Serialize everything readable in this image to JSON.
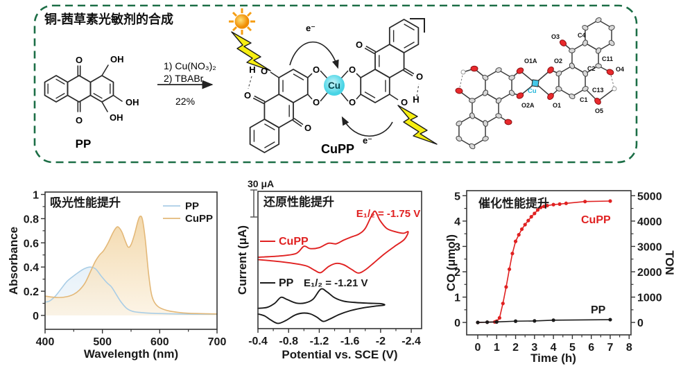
{
  "scheme": {
    "title": "铜-茜草素光敏剂的合成",
    "reactant_label": "PP",
    "product_label": "CuPP",
    "conditions_line1": "1) Cu(NO₃)₂",
    "conditions_line2": "2) TBABr",
    "yield_label": "22%",
    "electron_top": "e⁻",
    "electron_bottom": "e⁻",
    "cu_symbol": "Cu",
    "pp_atoms": {
      "top_o": "O",
      "bottom_o": "O",
      "top_oh": "OH",
      "right_oh": "OH",
      "bottom_oh": "OH"
    },
    "cupp_atoms": {
      "left_h": "H",
      "left_oh_o": "O",
      "left_ketone_left_o": "O",
      "left_ketone_bottom_o": "O",
      "o_top_left": "O",
      "o_bottom_left": "O",
      "o_top_right": "O",
      "o_bottom_right": "O",
      "right_ketone_top_o": "O",
      "right_ketone_right_o": "O",
      "right_oh_o": "O",
      "right_h": "H"
    }
  },
  "crystal": {
    "cu_label": "Cu",
    "atom_labels": {
      "o1a": "O1A",
      "o2": "O2",
      "o3": "O3",
      "c4": "C4",
      "c2": "C2",
      "c11": "C11",
      "o4": "O4",
      "o2a": "O2A",
      "o1": "O1",
      "c1": "C1",
      "c13": "C13",
      "o5": "O5"
    }
  },
  "colors": {
    "accent_red": "#e02121",
    "black_series": "#1a1a1a",
    "pp_blue_line": "#a9cde6",
    "pp_blue_fill": "#bcd8ec",
    "cupp_tan_line": "#e3b878",
    "cupp_tan_fill": "#efcd94",
    "border_green": "#1c6e46",
    "cu_cyan": "#53dbe8",
    "sun_orange": "#f5a21b",
    "bolt_yellow": "#f6ee12",
    "oxygen_red": "#e8292c",
    "carbon_gray": "#d8d8d8"
  },
  "chart_data": [
    {
      "id": "absorption",
      "type": "area",
      "title": "吸光性能提升",
      "xlabel": "Wavelength (nm)",
      "ylabel": "Absorbance",
      "xlim": [
        400,
        700
      ],
      "ylim": [
        -0.115,
        1.02
      ],
      "xticks": [
        400,
        500,
        600,
        700
      ],
      "xminor": [
        450,
        550,
        650
      ],
      "yticks": [
        0,
        0.2,
        0.4,
        0.6,
        0.8,
        1
      ],
      "ytick_labels": [
        "0",
        "0.2",
        "0.4",
        "0.6",
        "0.8",
        "1"
      ],
      "yminor": [
        0.1,
        0.3,
        0.5,
        0.7,
        0.9
      ],
      "legend": [
        {
          "label": "PP",
          "color": "#a9cde6"
        },
        {
          "label": "CuPP",
          "color": "#e3b878"
        }
      ],
      "series": [
        {
          "name": "PP",
          "color": "#a9cde6",
          "fill_top": "#bcd8ec",
          "fill_bottom": "#eef5fb",
          "points": [
            [
              400,
              0.11
            ],
            [
              408,
              0.12
            ],
            [
              418,
              0.16
            ],
            [
              428,
              0.22
            ],
            [
              438,
              0.28
            ],
            [
              448,
              0.32
            ],
            [
              458,
              0.355
            ],
            [
              468,
              0.385
            ],
            [
              478,
              0.4
            ],
            [
              488,
              0.385
            ],
            [
              498,
              0.325
            ],
            [
              508,
              0.27
            ],
            [
              516,
              0.235
            ],
            [
              524,
              0.175
            ],
            [
              532,
              0.115
            ],
            [
              542,
              0.06
            ],
            [
              552,
              0.035
            ],
            [
              565,
              0.025
            ],
            [
              585,
              0.018
            ],
            [
              620,
              0.013
            ],
            [
              660,
              0.01
            ],
            [
              700,
              0.01
            ]
          ]
        },
        {
          "name": "CuPP",
          "color": "#e3b878",
          "fill_top": "#efcd94",
          "fill_bottom": "#fdf6e9",
          "points": [
            [
              400,
              0.16
            ],
            [
              412,
              0.152
            ],
            [
              425,
              0.148
            ],
            [
              438,
              0.155
            ],
            [
              450,
              0.175
            ],
            [
              460,
              0.21
            ],
            [
              470,
              0.27
            ],
            [
              480,
              0.37
            ],
            [
              488,
              0.45
            ],
            [
              495,
              0.5
            ],
            [
              502,
              0.535
            ],
            [
              510,
              0.6
            ],
            [
              518,
              0.68
            ],
            [
              524,
              0.725
            ],
            [
              528,
              0.73
            ],
            [
              534,
              0.69
            ],
            [
              540,
              0.615
            ],
            [
              545,
              0.565
            ],
            [
              550,
              0.585
            ],
            [
              556,
              0.67
            ],
            [
              562,
              0.78
            ],
            [
              566,
              0.82
            ],
            [
              570,
              0.79
            ],
            [
              575,
              0.62
            ],
            [
              580,
              0.37
            ],
            [
              585,
              0.19
            ],
            [
              590,
              0.115
            ],
            [
              598,
              0.07
            ],
            [
              610,
              0.045
            ],
            [
              625,
              0.03
            ],
            [
              650,
              0.018
            ],
            [
              700,
              0.012
            ]
          ]
        }
      ]
    },
    {
      "id": "cv",
      "type": "line",
      "title": "还原性能提升",
      "scale_bar_label": "30 μA",
      "xlabel": "Potential vs. SCE (V)",
      "ylabel": "Current (μA)",
      "xlim": [
        -0.4,
        -2.535
      ],
      "xticks": [
        -0.4,
        -0.8,
        -1.2,
        -1.6,
        -2,
        -2.4
      ],
      "xtick_labels": [
        "-0.4",
        "-0.8",
        "-1.2",
        "-1.6",
        "-2",
        "-2.4"
      ],
      "xminor": [
        -0.6,
        -1.0,
        -1.4,
        -1.8,
        -2.2
      ],
      "ylim": [
        0,
        1
      ],
      "ynote": "current axis unlabeled; 30 μA scale bar shown",
      "annotations": [
        {
          "text": "E₁/₂ = -1.75 V",
          "color": "#e02121"
        },
        {
          "text": "E₁/₂ = -1.21 V",
          "color": "#1a1a1a"
        }
      ],
      "series": [
        {
          "name": "CuPP",
          "color": "#e02121",
          "points": [
            [
              -0.4,
              0.52
            ],
            [
              -0.7,
              0.53
            ],
            [
              -0.9,
              0.548
            ],
            [
              -1.0,
              0.6
            ],
            [
              -1.08,
              0.583
            ],
            [
              -1.2,
              0.59
            ],
            [
              -1.32,
              0.622
            ],
            [
              -1.42,
              0.618
            ],
            [
              -1.52,
              0.645
            ],
            [
              -1.62,
              0.668
            ],
            [
              -1.72,
              0.69
            ],
            [
              -1.8,
              0.73
            ],
            [
              -1.88,
              0.82
            ],
            [
              -1.93,
              0.855
            ],
            [
              -1.99,
              0.79
            ],
            [
              -2.08,
              0.73
            ],
            [
              -2.2,
              0.705
            ],
            [
              -2.3,
              0.695
            ],
            [
              -2.36,
              0.705
            ],
            [
              -2.31,
              0.65
            ],
            [
              -2.18,
              0.598
            ],
            [
              -2.04,
              0.54
            ],
            [
              -1.91,
              0.478
            ],
            [
              -1.8,
              0.428
            ],
            [
              -1.71,
              0.405
            ],
            [
              -1.62,
              0.432
            ],
            [
              -1.52,
              0.465
            ],
            [
              -1.42,
              0.475
            ],
            [
              -1.32,
              0.452
            ],
            [
              -1.22,
              0.408
            ],
            [
              -1.14,
              0.425
            ],
            [
              -1.04,
              0.455
            ],
            [
              -0.9,
              0.472
            ],
            [
              -0.72,
              0.486
            ],
            [
              -0.52,
              0.497
            ],
            [
              -0.4,
              0.503
            ]
          ]
        },
        {
          "name": "PP",
          "color": "#1a1a1a",
          "points": [
            [
              -0.4,
              0.148
            ],
            [
              -0.52,
              0.155
            ],
            [
              -0.62,
              0.185
            ],
            [
              -0.7,
              0.228
            ],
            [
              -0.78,
              0.212
            ],
            [
              -0.9,
              0.186
            ],
            [
              -1.02,
              0.188
            ],
            [
              -1.12,
              0.215
            ],
            [
              -1.22,
              0.288
            ],
            [
              -1.3,
              0.268
            ],
            [
              -1.4,
              0.225
            ],
            [
              -1.52,
              0.2
            ],
            [
              -1.68,
              0.19
            ],
            [
              -1.85,
              0.185
            ],
            [
              -2.0,
              0.182
            ],
            [
              -2.05,
              0.172
            ],
            [
              -1.92,
              0.163
            ],
            [
              -1.76,
              0.15
            ],
            [
              -1.6,
              0.13
            ],
            [
              -1.46,
              0.103
            ],
            [
              -1.33,
              0.068
            ],
            [
              -1.25,
              0.053
            ],
            [
              -1.17,
              0.083
            ],
            [
              -1.08,
              0.108
            ],
            [
              -0.98,
              0.113
            ],
            [
              -0.88,
              0.098
            ],
            [
              -0.76,
              0.058
            ],
            [
              -0.66,
              0.038
            ],
            [
              -0.57,
              0.062
            ],
            [
              -0.49,
              0.092
            ],
            [
              -0.43,
              0.103
            ],
            [
              -0.4,
              0.106
            ]
          ]
        }
      ]
    },
    {
      "id": "catalysis",
      "type": "line",
      "title": "催化性能提升",
      "xlabel": "Time (h)",
      "ylabel": "CO (μmol)",
      "ylabel_right": "TON",
      "xlim": [
        -0.586,
        8.1
      ],
      "xticks": [
        0,
        1,
        2,
        3,
        4,
        5,
        6,
        7,
        8
      ],
      "xminor": [
        0.5,
        1.5,
        2.5,
        3.5,
        4.5,
        5.5,
        6.5,
        7.5
      ],
      "ylim": [
        -0.49,
        5.2
      ],
      "yticks": [
        0,
        1,
        2,
        3,
        4,
        5
      ],
      "yminor": [
        0.5,
        1.5,
        2.5,
        3.5,
        4.5
      ],
      "y2lim": [
        -490,
        5200
      ],
      "y2ticks": [
        0,
        1000,
        2000,
        3000,
        4000,
        5000
      ],
      "y2minor": [
        500,
        1500,
        2500,
        3500,
        4500
      ],
      "series": [
        {
          "name": "CuPP",
          "color": "#e02121",
          "markers": true,
          "points": [
            [
              0,
              0
            ],
            [
              0.5,
              0.01
            ],
            [
              0.9,
              0.02
            ],
            [
              1.0,
              0.05
            ],
            [
              1.15,
              0.18
            ],
            [
              1.33,
              0.75
            ],
            [
              1.5,
              1.4
            ],
            [
              1.67,
              2.1
            ],
            [
              1.83,
              2.72
            ],
            [
              2.0,
              3.2
            ],
            [
              2.17,
              3.46
            ],
            [
              2.33,
              3.68
            ],
            [
              2.5,
              3.86
            ],
            [
              2.67,
              4.02
            ],
            [
              2.83,
              4.17
            ],
            [
              3.0,
              4.3
            ],
            [
              3.17,
              4.44
            ],
            [
              3.33,
              4.54
            ],
            [
              3.5,
              4.58
            ],
            [
              3.67,
              4.61
            ],
            [
              4.0,
              4.65
            ],
            [
              4.33,
              4.67
            ],
            [
              4.67,
              4.7
            ],
            [
              5.67,
              4.77
            ],
            [
              7.0,
              4.79
            ]
          ]
        },
        {
          "name": "PP",
          "color": "#1a1a1a",
          "markers": true,
          "points": [
            [
              0,
              0
            ],
            [
              0.5,
              0.01
            ],
            [
              1.0,
              0.02
            ],
            [
              2.0,
              0.05
            ],
            [
              3.0,
              0.06
            ],
            [
              4.0,
              0.09
            ],
            [
              7.0,
              0.11
            ]
          ]
        }
      ]
    }
  ]
}
